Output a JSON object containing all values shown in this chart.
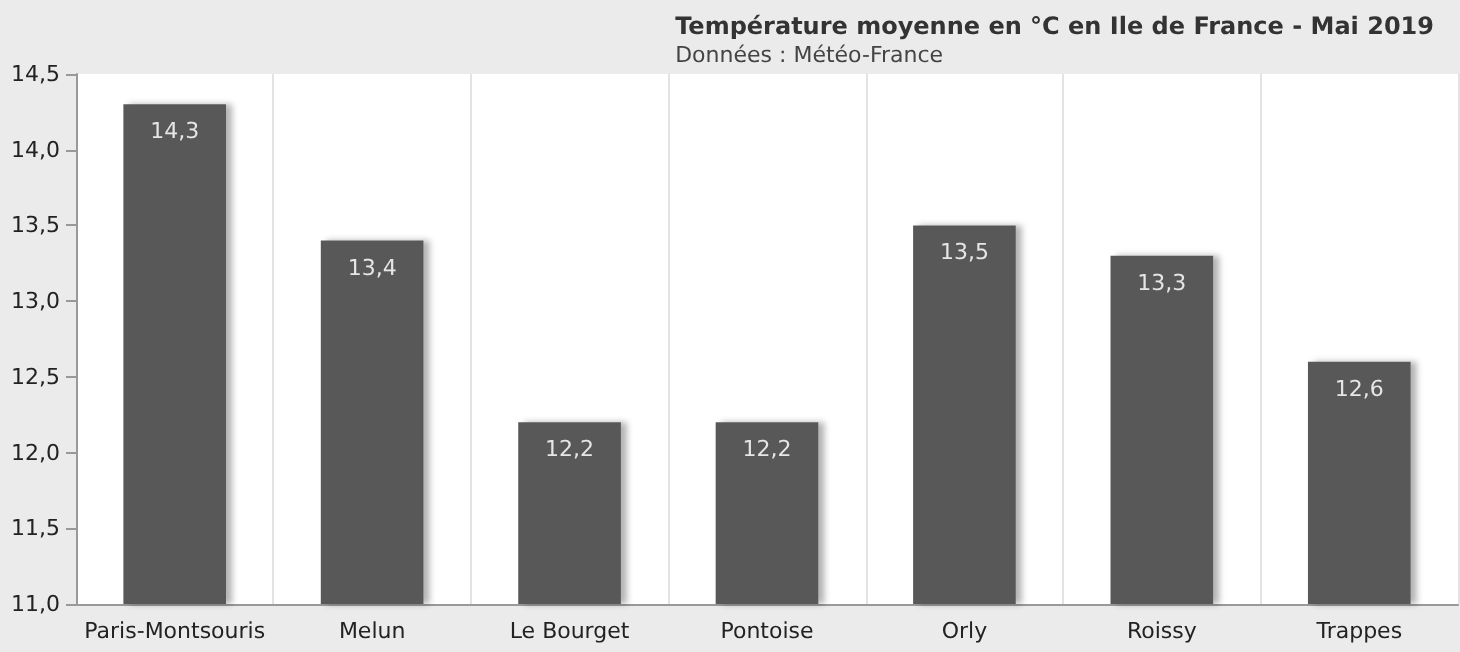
{
  "chart_data": {
    "type": "bar",
    "title": "Température moyenne en °C en Ile de France - Mai 2019",
    "subtitle": "Données : Météo-France",
    "categories": [
      "Paris-Montsouris",
      "Melun",
      "Le Bourget",
      "Pontoise",
      "Orly",
      "Roissy",
      "Trappes"
    ],
    "values": [
      14.3,
      13.4,
      12.2,
      12.2,
      13.5,
      13.3,
      12.6
    ],
    "value_labels": [
      "14,3",
      "13,4",
      "12,2",
      "12,2",
      "13,5",
      "13,3",
      "12,6"
    ],
    "color": "#595959",
    "ylim": [
      11,
      14.5
    ],
    "yticks": [
      {
        "value": 11,
        "label": "11,0"
      },
      {
        "value": 11.5,
        "label": "11,5"
      },
      {
        "value": 12,
        "label": "12,0"
      },
      {
        "value": 12.5,
        "label": "12,5"
      },
      {
        "value": 13,
        "label": "13,0"
      },
      {
        "value": 13.5,
        "label": "13,5"
      },
      {
        "value": 14,
        "label": "14,0"
      },
      {
        "value": 14.5,
        "label": "14,5"
      }
    ],
    "grid": "x"
  }
}
